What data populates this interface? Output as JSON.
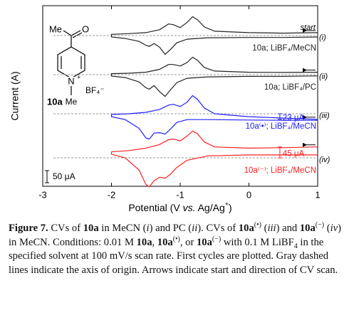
{
  "chart_data": {
    "type": "cv",
    "x_label_runs": [
      "Potential (V ",
      "vs.",
      " Ag/Ag",
      "+",
      ")"
    ],
    "y_label": "Current (A)",
    "xlim": [
      -3,
      1
    ],
    "xticks": [
      -3,
      -2,
      -1,
      0,
      1
    ],
    "x": [
      1,
      0.5,
      0,
      -0.5,
      -0.65,
      -0.75,
      -0.82,
      -0.9,
      -1.0,
      -1.1,
      -1.17,
      -1.3,
      -1.5,
      -1.75,
      -2,
      -2,
      -1.8,
      -1.6,
      -1.5,
      -1.45,
      -1.38,
      -1.3,
      -1.22,
      -1.15,
      -1.05,
      -0.9,
      -0.6,
      0,
      0.5,
      1
    ],
    "series": [
      {
        "name": "10a; LiBF₄/MeCN",
        "label": "(i)",
        "color": "#222222",
        "values": [
          12,
          10,
          12,
          18,
          36,
          66,
          78,
          54,
          33,
          45,
          48,
          24,
          12,
          8,
          5,
          -6,
          -12,
          -24,
          -40,
          -45,
          -33,
          -48,
          -78,
          -60,
          -30,
          -15,
          -9,
          -8,
          -8,
          -6
        ]
      },
      {
        "name": "10a; LiBF₄/PC",
        "label": "(ii)",
        "color": "#222222",
        "values": [
          10,
          9,
          10,
          15,
          30,
          60,
          72,
          50,
          36,
          42,
          42,
          22,
          10,
          6,
          4,
          -6,
          -12,
          -30,
          -54,
          -60,
          -45,
          -70,
          -90,
          -66,
          -33,
          -15,
          -9,
          -7,
          -7,
          -5
        ]
      },
      {
        "name": "10a⁽•⁾; LiBF₄/MeCN",
        "label": "(iii)",
        "color": "#2020ff",
        "values": [
          -23,
          -18,
          -12,
          0,
          24,
          60,
          75,
          48,
          30,
          39,
          36,
          18,
          6,
          0,
          -3,
          -12,
          -24,
          -60,
          -100,
          -105,
          -80,
          -78,
          -84,
          -66,
          -36,
          -24,
          -24,
          -26,
          -27,
          -27
        ]
      },
      {
        "name": "10a⁽⁻⁾; LiBF₄/MeCN",
        "label": "(iv)",
        "color": "#ff2020",
        "values": [
          45,
          42,
          40,
          45,
          66,
          100,
          111,
          90,
          70,
          78,
          75,
          55,
          40,
          30,
          25,
          15,
          0,
          -50,
          -110,
          -120,
          -95,
          -80,
          -84,
          -70,
          -40,
          -10,
          8,
          12,
          12,
          12
        ]
      }
    ],
    "start_label": "start",
    "scale_bar": {
      "value": 50,
      "label": "50 μA"
    },
    "annotations": [
      {
        "value": 23,
        "label": "23 μA"
      },
      {
        "value": 45,
        "label": "45 μA"
      }
    ],
    "structure": {
      "me_top": "Me",
      "o": "O",
      "n": "N",
      "charge": "+",
      "anion": "BF₄⁻",
      "compound": "10a",
      "me_n": "Me"
    }
  },
  "caption": [
    "Figure 7.",
    " CVs of ",
    "10a",
    " in MeCN (",
    "i",
    ") and PC (",
    "ii",
    "). CVs of ",
    "10a",
    "(•)",
    " (",
    "iii",
    ") and ",
    "10a",
    "(−)",
    " (",
    "iv",
    ") in MeCN. Conditions: 0.01 M ",
    "10a",
    ", ",
    "10a",
    "(•)",
    ", or ",
    "10a",
    "(−)",
    " with 0.1 M LiBF",
    "4",
    " in the specified solvent at 100 mV/s scan rate. First cycles are plotted. Gray dashed lines indicate the axis of origin. Arrows indicate start and direction of CV scan."
  ]
}
